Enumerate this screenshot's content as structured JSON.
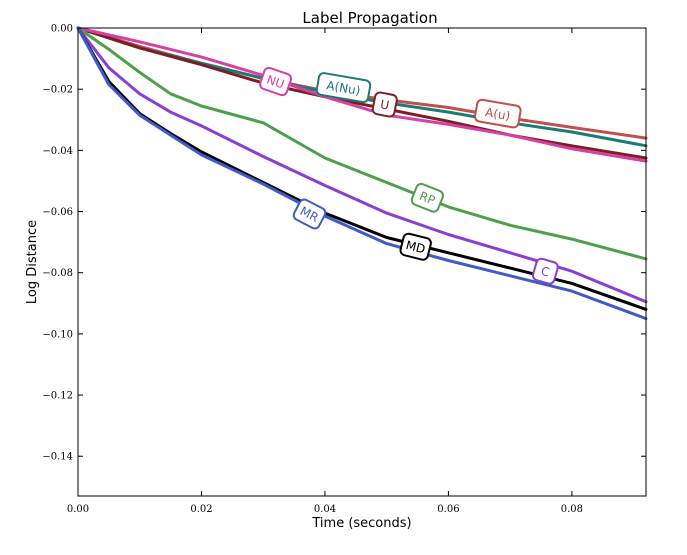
{
  "chart_data": {
    "type": "line",
    "title": "Label Propagation",
    "xlabel": "Time (seconds)",
    "ylabel": "Log Distance",
    "xlim": [
      0.0,
      0.092
    ],
    "ylim": [
      -0.153,
      0.0
    ],
    "xticks": [
      0.0,
      0.02,
      0.04,
      0.06,
      0.08
    ],
    "xtick_labels": [
      "0.00",
      "0.02",
      "0.04",
      "0.06",
      "0.08"
    ],
    "yticks": [
      0.0,
      -0.02,
      -0.04,
      -0.06,
      -0.08,
      -0.1,
      -0.12,
      -0.14
    ],
    "ytick_labels": [
      "0.00",
      "−0.02",
      "−0.04",
      "−0.06",
      "−0.08",
      "−0.10",
      "−0.12",
      "−0.14"
    ],
    "grid": false,
    "legend": "inline labels",
    "series": [
      {
        "name": "A(u)",
        "color": "#c0504d",
        "x": [
          0,
          0.01,
          0.02,
          0.03,
          0.04,
          0.05,
          0.06,
          0.07,
          0.08,
          0.092
        ],
        "y": [
          0,
          -0.006,
          -0.0115,
          -0.0165,
          -0.0205,
          -0.0235,
          -0.026,
          -0.0295,
          -0.0325,
          -0.036
        ],
        "label_at": [
          0.068,
          -0.028
        ]
      },
      {
        "name": "A(Nu)",
        "color": "#1f7a75",
        "x": [
          0,
          0.01,
          0.02,
          0.03,
          0.04,
          0.05,
          0.06,
          0.07,
          0.08,
          0.092
        ],
        "y": [
          0,
          -0.0065,
          -0.0115,
          -0.0165,
          -0.021,
          -0.0245,
          -0.0275,
          -0.031,
          -0.034,
          -0.0385
        ],
        "label_at": [
          0.043,
          -0.0195
        ]
      },
      {
        "name": "U",
        "color": "#7b1f24",
        "x": [
          0,
          0.01,
          0.02,
          0.03,
          0.04,
          0.05,
          0.06,
          0.07,
          0.08,
          0.092
        ],
        "y": [
          0,
          -0.0065,
          -0.012,
          -0.018,
          -0.0225,
          -0.0265,
          -0.0305,
          -0.035,
          -0.0385,
          -0.0425
        ],
        "label_at": [
          0.0497,
          -0.025
        ]
      },
      {
        "name": "NU",
        "color": "#d63fa4",
        "x": [
          0,
          0.01,
          0.02,
          0.03,
          0.04,
          0.05,
          0.06,
          0.07,
          0.08,
          0.092
        ],
        "y": [
          0,
          -0.0045,
          -0.0095,
          -0.0155,
          -0.0225,
          -0.0285,
          -0.0315,
          -0.035,
          -0.0395,
          -0.0435
        ],
        "label_at": [
          0.032,
          -0.0175
        ]
      },
      {
        "name": "RP",
        "color": "#4e9f4a",
        "x": [
          0,
          0.005,
          0.01,
          0.015,
          0.02,
          0.03,
          0.04,
          0.05,
          0.06,
          0.07,
          0.08,
          0.092
        ],
        "y": [
          0,
          -0.007,
          -0.0145,
          -0.0215,
          -0.0255,
          -0.031,
          -0.0425,
          -0.0505,
          -0.0585,
          -0.0645,
          -0.069,
          -0.0755
        ],
        "label_at": [
          0.0566,
          -0.0555
        ]
      },
      {
        "name": "C",
        "color": "#8b3fd1",
        "x": [
          0,
          0.005,
          0.01,
          0.015,
          0.02,
          0.03,
          0.04,
          0.05,
          0.06,
          0.07,
          0.08,
          0.092
        ],
        "y": [
          0,
          -0.013,
          -0.0215,
          -0.0275,
          -0.032,
          -0.042,
          -0.0515,
          -0.0605,
          -0.0675,
          -0.0735,
          -0.0795,
          -0.0895
        ],
        "label_at": [
          0.0757,
          -0.0795
        ]
      },
      {
        "name": "MD",
        "color": "#000000",
        "x": [
          0,
          0.005,
          0.01,
          0.015,
          0.02,
          0.03,
          0.04,
          0.05,
          0.06,
          0.07,
          0.08,
          0.092
        ],
        "y": [
          0,
          -0.0175,
          -0.028,
          -0.0345,
          -0.0405,
          -0.0505,
          -0.0605,
          -0.0685,
          -0.0735,
          -0.0785,
          -0.0835,
          -0.092
        ],
        "label_at": [
          0.0547,
          -0.0715
        ]
      },
      {
        "name": "MR",
        "color": "#3f5bc7",
        "x": [
          0,
          0.005,
          0.01,
          0.015,
          0.02,
          0.03,
          0.04,
          0.05,
          0.06,
          0.07,
          0.08,
          0.092
        ],
        "y": [
          0,
          -0.0185,
          -0.0285,
          -0.035,
          -0.0415,
          -0.051,
          -0.0615,
          -0.0705,
          -0.076,
          -0.081,
          -0.086,
          -0.095
        ],
        "label_at": [
          0.0375,
          -0.0608
        ]
      }
    ]
  }
}
